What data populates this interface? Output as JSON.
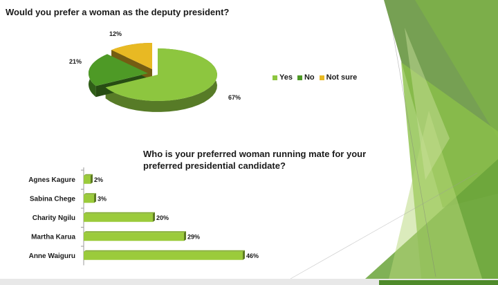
{
  "slide": {
    "background": "#ffffff"
  },
  "chart_data": [
    {
      "type": "pie",
      "title": "Would you prefer a woman as the deputy president?",
      "categories": [
        "Yes",
        "No",
        "Not sure"
      ],
      "values": [
        67,
        21,
        12
      ],
      "labels": [
        "67%",
        "21%",
        "12%"
      ],
      "colors": [
        "#8dc63f",
        "#4e9a26",
        "#e8b923"
      ],
      "legend_position": "right"
    },
    {
      "type": "bar",
      "orientation": "horizontal",
      "title": "Who is your preferred woman running mate for your preferred presidential candidate?",
      "categories": [
        "Agnes Kagure",
        "Sabina Chege",
        "Charity Ngilu",
        "Martha Karua",
        "Anne Waiguru"
      ],
      "values": [
        2,
        3,
        20,
        29,
        46
      ],
      "labels": [
        "2%",
        "3%",
        "20%",
        "29%",
        "46%"
      ],
      "color": "#9bcb3b",
      "grid": false
    }
  ]
}
